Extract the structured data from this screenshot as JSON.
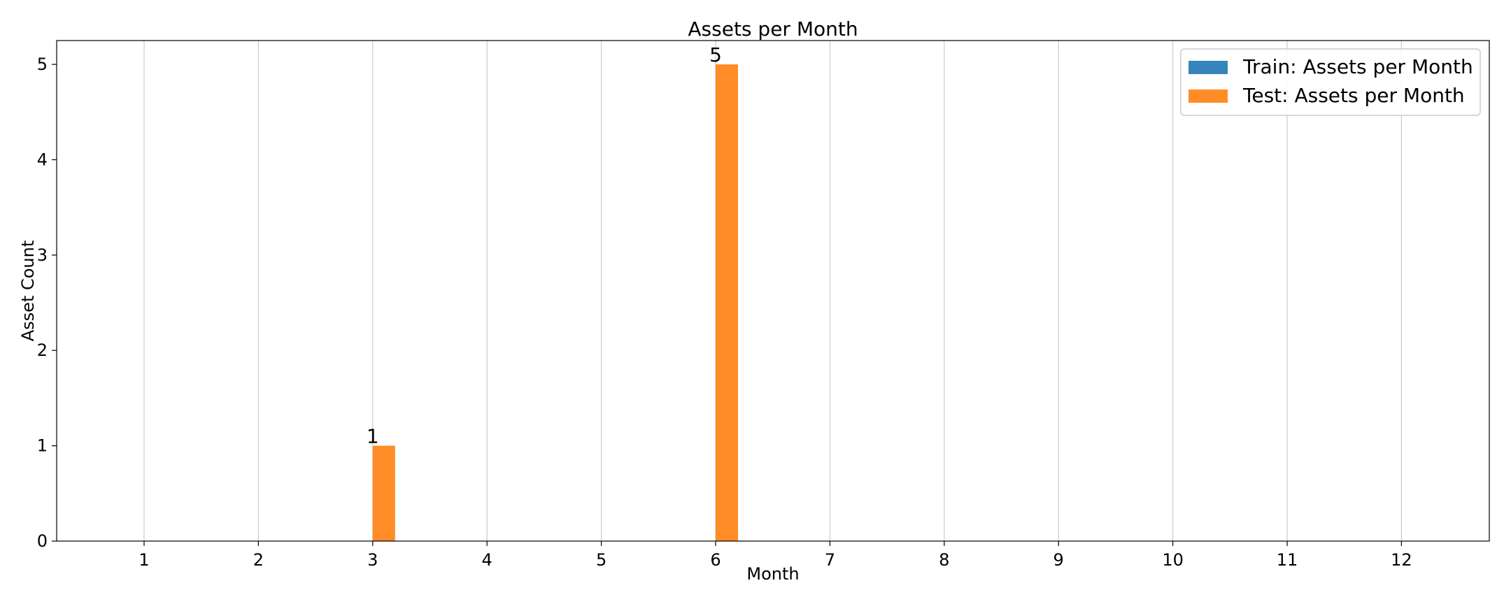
{
  "chart_data": {
    "type": "bar",
    "title": "Assets per Month",
    "xlabel": "Month",
    "ylabel": "Asset Count",
    "categories": [
      "1",
      "2",
      "3",
      "4",
      "5",
      "6",
      "7",
      "8",
      "9",
      "10",
      "11",
      "12"
    ],
    "series": [
      {
        "name": "Train: Assets per Month",
        "color": "#1f77b4",
        "values": [
          0,
          0,
          0,
          0,
          0,
          0,
          0,
          0,
          0,
          0,
          0,
          0
        ]
      },
      {
        "name": "Test: Assets per Month",
        "color": "#ff7f0e",
        "values": [
          0,
          0,
          1,
          0,
          0,
          5,
          0,
          0,
          0,
          0,
          0,
          0
        ]
      }
    ],
    "data_labels": [
      {
        "series": 1,
        "category": "3",
        "text": "1"
      },
      {
        "series": 1,
        "category": "6",
        "text": "5"
      }
    ],
    "yticks": [
      "0",
      "1",
      "2",
      "3",
      "4",
      "5"
    ],
    "ylim": [
      0,
      5.25
    ],
    "grid": "vertical",
    "legend_position": "top-right"
  }
}
